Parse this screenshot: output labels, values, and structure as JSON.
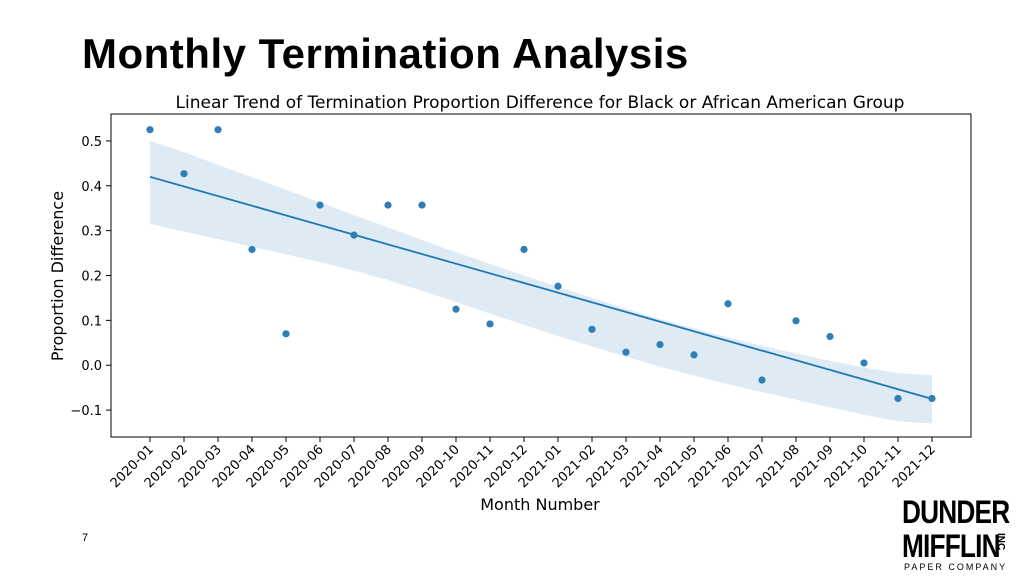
{
  "slide": {
    "title": "Monthly Termination Analysis",
    "page_number": "7"
  },
  "logo": {
    "line1": "DUNDER",
    "line2": "MIFFLIN",
    "inc": "INC",
    "line3": "PAPER COMPANY"
  },
  "chart_data": {
    "type": "scatter",
    "title": "Linear Trend of Termination Proportion Difference for Black or African American Group",
    "xlabel": "Month Number",
    "ylabel": "Proportion Difference",
    "categories": [
      "2020-01",
      "2020-02",
      "2020-03",
      "2020-04",
      "2020-05",
      "2020-06",
      "2020-07",
      "2020-08",
      "2020-09",
      "2020-10",
      "2020-11",
      "2020-12",
      "2021-01",
      "2021-02",
      "2021-03",
      "2021-04",
      "2021-05",
      "2021-06",
      "2021-07",
      "2021-08",
      "2021-09",
      "2021-10",
      "2021-11",
      "2021-12"
    ],
    "values": [
      0.525,
      0.427,
      0.525,
      0.258,
      0.07,
      0.357,
      0.29,
      0.357,
      0.357,
      0.125,
      0.092,
      0.258,
      0.176,
      0.08,
      0.029,
      0.046,
      0.023,
      0.137,
      -0.033,
      0.099,
      0.064,
      0.005,
      -0.074,
      -0.074
    ],
    "trend": {
      "start": 0.42,
      "end": -0.075
    },
    "confidence_band": {
      "upper": [
        0.5,
        0.475,
        0.447,
        0.419,
        0.391,
        0.363,
        0.335,
        0.307,
        0.279,
        0.252,
        0.226,
        0.2,
        0.175,
        0.15,
        0.126,
        0.103,
        0.082,
        0.062,
        0.043,
        0.026,
        0.01,
        -0.005,
        -0.018,
        -0.022
      ],
      "lower": [
        0.315,
        0.298,
        0.281,
        0.264,
        0.247,
        0.23,
        0.211,
        0.19,
        0.166,
        0.141,
        0.115,
        0.09,
        0.065,
        0.042,
        0.019,
        -0.003,
        -0.023,
        -0.042,
        -0.06,
        -0.077,
        -0.094,
        -0.11,
        -0.125,
        -0.13
      ]
    },
    "yticks": [
      0.5,
      0.4,
      0.3,
      0.2,
      0.1,
      0.0,
      -0.1
    ],
    "ytick_labels": [
      "0.5",
      "0.4",
      "0.3",
      "0.2",
      "0.1",
      "0.0",
      "−0.1"
    ],
    "ylim": [
      -0.16,
      0.56
    ],
    "grid": false,
    "colors": {
      "points": "#2f7fb6",
      "line": "#1f77b4",
      "band": "#1f77b4"
    }
  }
}
